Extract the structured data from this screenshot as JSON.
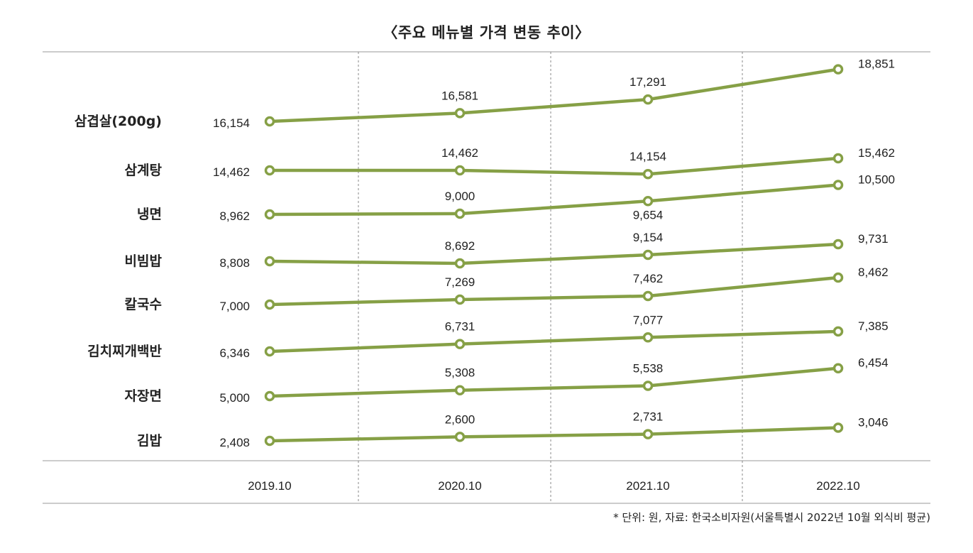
{
  "footnote": "* 단위: 원, 자료: 한국소비자원(서울특별시 2022년 10월 외식비 평균)",
  "colors": {
    "line": "#86a046",
    "marker_fill": "#ffffff",
    "rule": "#999999",
    "divider": "#888888"
  },
  "chart_data": {
    "type": "line",
    "title": "〈주요 메뉴별 가격 변동 추이〉",
    "xlabel": "",
    "ylabel": "",
    "unit": "원",
    "categories": [
      "2019.10",
      "2020.10",
      "2021.10",
      "2022.10"
    ],
    "grid": false,
    "legend": "left",
    "series": [
      {
        "name": "삼겹살(200g)",
        "values": [
          16154,
          16581,
          17291,
          18851
        ],
        "labels": [
          "16,154",
          "16,581",
          "17,291",
          "18,851"
        ]
      },
      {
        "name": "삼계탕",
        "values": [
          14462,
          14462,
          14154,
          15462
        ],
        "labels": [
          "14,462",
          "14,462",
          "14,154",
          "15,462"
        ]
      },
      {
        "name": "냉면",
        "values": [
          8962,
          9000,
          9654,
          10500
        ],
        "labels": [
          "8,962",
          "9,000",
          "9,654",
          "10,500"
        ]
      },
      {
        "name": "비빔밥",
        "values": [
          8808,
          8692,
          9154,
          9731
        ],
        "labels": [
          "8,808",
          "8,692",
          "9,154",
          "9,731"
        ]
      },
      {
        "name": "칼국수",
        "values": [
          7000,
          7269,
          7462,
          8462
        ],
        "labels": [
          "7,000",
          "7,269",
          "7,462",
          "8,462"
        ]
      },
      {
        "name": "김치찌개백반",
        "values": [
          6346,
          6731,
          7077,
          7385
        ],
        "labels": [
          "6,346",
          "6,731",
          "7,077",
          "7,385"
        ]
      },
      {
        "name": "자장면",
        "values": [
          5000,
          5308,
          5538,
          6454
        ],
        "labels": [
          "5,000",
          "5,308",
          "5,538",
          "6,454"
        ]
      },
      {
        "name": "김밥",
        "values": [
          2408,
          2600,
          2731,
          3046
        ],
        "labels": [
          "2,408",
          "2,600",
          "2,731",
          "3,046"
        ]
      }
    ]
  }
}
